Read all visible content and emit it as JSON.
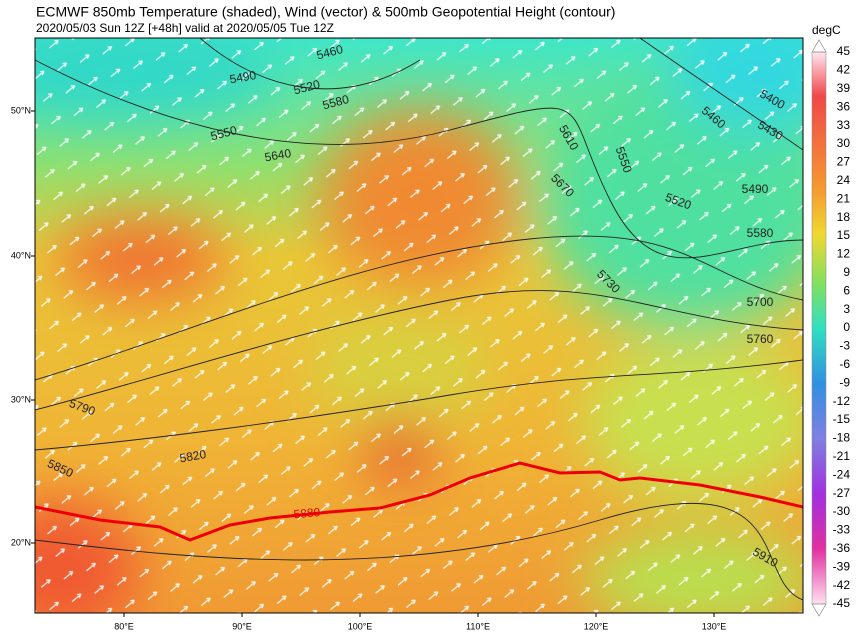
{
  "header": {
    "title": "ECMWF 850mb Temperature (shaded), Wind (vector) & 500mb Geopotential Height (contour)",
    "subtitle": "2020/05/03 Sun 12Z [+48h] valid at 2020/05/05 Tue 12Z"
  },
  "map": {
    "lat_labels": [
      "50°N",
      "40°N",
      "30°N",
      "20°N"
    ],
    "lon_labels": [
      "80°E",
      "90°E",
      "100°E",
      "110°E",
      "120°E",
      "130°E"
    ],
    "contour_labels": [
      5460,
      5490,
      5520,
      5580,
      5550,
      5640,
      5610,
      5550,
      5670,
      5400,
      5460,
      5430,
      5490,
      5520,
      5580,
      5730,
      5700,
      5760,
      5790,
      5820,
      5850,
      5880,
      5910
    ]
  },
  "colorbar": {
    "label": "degC",
    "ticks": [
      45,
      42,
      39,
      36,
      33,
      30,
      27,
      24,
      21,
      18,
      15,
      12,
      9,
      6,
      3,
      0,
      -3,
      -6,
      -9,
      -12,
      -15,
      -18,
      -21,
      -24,
      -27,
      -30,
      -33,
      -36,
      -39,
      -42,
      -45
    ]
  }
}
